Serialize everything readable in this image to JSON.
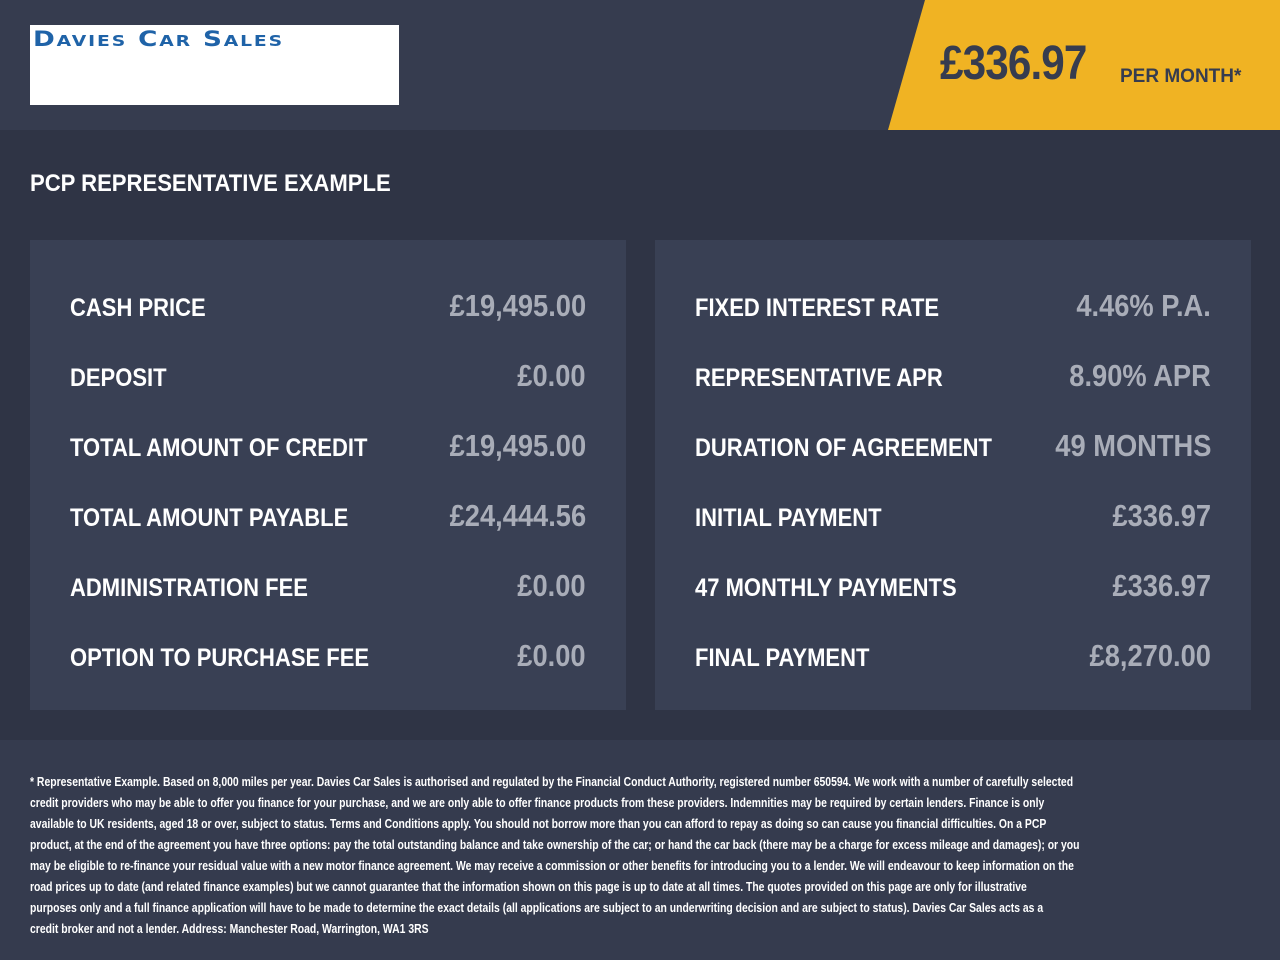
{
  "header": {
    "logo_text": "Davies Car Sales",
    "monthly_price": "£336.97",
    "per_month_label": "PER MONTH*",
    "accent_color": "#f0b323"
  },
  "section_title": "PCP REPRESENTATIVE EXAMPLE",
  "left_rows": [
    {
      "label": "CASH PRICE",
      "value": "£19,495.00"
    },
    {
      "label": "DEPOSIT",
      "value": "£0.00"
    },
    {
      "label": "TOTAL AMOUNT OF CREDIT",
      "value": "£19,495.00"
    },
    {
      "label": "TOTAL AMOUNT PAYABLE",
      "value": "£24,444.56"
    },
    {
      "label": "ADMINISTRATION FEE",
      "value": "£0.00"
    },
    {
      "label": "OPTION TO PURCHASE FEE",
      "value": "£0.00"
    }
  ],
  "right_rows": [
    {
      "label": "FIXED INTEREST RATE",
      "value": "4.46% P.A."
    },
    {
      "label": "REPRESENTATIVE APR",
      "value": "8.90% APR"
    },
    {
      "label": "DURATION OF AGREEMENT",
      "value": "49 MONTHS"
    },
    {
      "label": "INITIAL PAYMENT",
      "value": "£336.97"
    },
    {
      "label": "47 MONTHLY PAYMENTS",
      "value": "£336.97"
    },
    {
      "label": "FINAL PAYMENT",
      "value": "£8,270.00"
    }
  ],
  "disclaimer_lines": [
    "* Representative Example. Based on 8,000 miles per year. Davies Car Sales  is authorised and regulated by the Financial Conduct Authority, registered number 650594. We work with a number of carefully selected",
    "credit providers who may be able to offer you finance for your purchase, and we are only able to offer finance products from these providers. Indemnities may be required by certain lenders. Finance is only",
    "available to UK residents, aged 18 or over, subject to status. Terms and Conditions apply. You should not borrow more than you can afford to repay as doing so can cause you financial difficulties. On a PCP",
    "product, at the end of the agreement you have three options: pay the total outstanding balance and take ownership of the car; or hand the car back (there may be a charge for excess mileage and damages); or you",
    "may be eligible to re-finance your residual value with a new motor finance agreement. We may receive a commission or other benefits for introducing you to a lender. We will endeavour to keep information on the",
    "road prices up to date (and related finance examples) but we cannot guarantee that the information shown on this page is up to date at all times. The quotes provided on this page are only for illustrative",
    "purposes only and a full finance application will have to be made to determine the exact details (all applications are subject to an underwriting decision and are subject to status). Davies Car Sales  acts as a",
    "credit broker and not a lender. Address: Manchester Road, Warrington, WA1 3RS"
  ]
}
